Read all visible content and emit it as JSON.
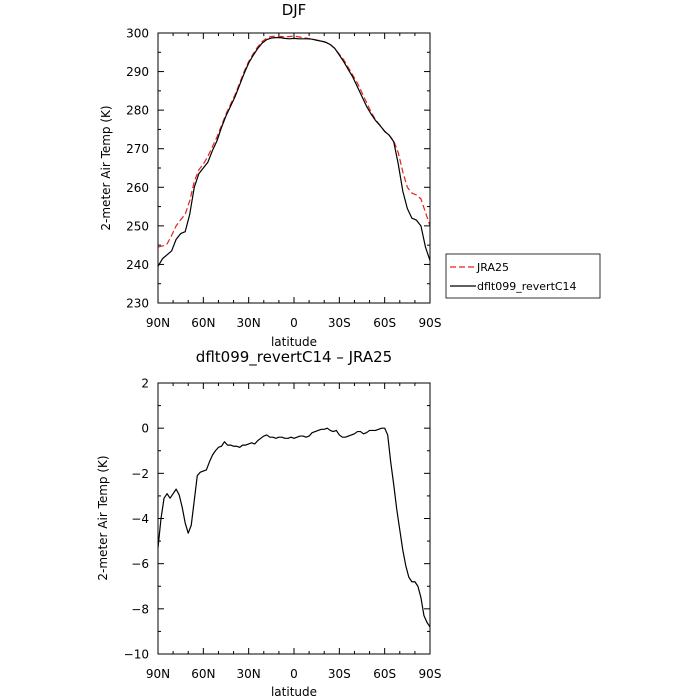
{
  "chart_data": [
    {
      "type": "line",
      "title": "DJF",
      "xlabel": "latitude",
      "ylabel": "2-meter Air Temp (K)",
      "xlim": [
        90,
        -90
      ],
      "ylim": [
        230,
        300
      ],
      "xticks": [
        90,
        60,
        30,
        0,
        -30,
        -60,
        -90
      ],
      "xtick_labels": [
        "90N",
        "60N",
        "30N",
        "0",
        "30S",
        "60S",
        "90S"
      ],
      "yticks": [
        230,
        240,
        250,
        260,
        270,
        280,
        290,
        300
      ],
      "ytick_labels": [
        "230",
        "240",
        "250",
        "260",
        "270",
        "280",
        "290",
        "300"
      ],
      "legend": "right",
      "series": [
        {
          "name": "JRA25",
          "color": "#e8201c",
          "dash": "dashed",
          "x": [
            90,
            87,
            84,
            81,
            78,
            75,
            72,
            69,
            66,
            63,
            60,
            57,
            54,
            51,
            48,
            45,
            42,
            39,
            36,
            33,
            30,
            27,
            24,
            21,
            18,
            15,
            12,
            9,
            6,
            3,
            0,
            -3,
            -6,
            -9,
            -12,
            -15,
            -18,
            -21,
            -24,
            -27,
            -30,
            -33,
            -36,
            -39,
            -42,
            -45,
            -48,
            -51,
            -54,
            -57,
            -60,
            -63,
            -66,
            -69,
            -72,
            -75,
            -78,
            -81,
            -84,
            -87,
            -90
          ],
          "y": [
            244.5,
            244.8,
            245.3,
            247.5,
            250,
            251.6,
            253,
            256.5,
            261.5,
            264.5,
            266,
            268,
            270.5,
            273,
            276,
            279,
            281.5,
            284,
            287,
            290,
            292.6,
            294.6,
            296.4,
            297.8,
            298.7,
            299.1,
            299.2,
            299.1,
            299.0,
            299.1,
            299.2,
            299.0,
            298.8,
            298.6,
            298.4,
            298.2,
            297.9,
            297.6,
            297.0,
            296.0,
            294.5,
            293,
            291,
            289,
            287,
            284.5,
            282,
            279.5,
            277.5,
            276,
            274.5,
            273.5,
            272,
            269,
            264,
            260,
            258.5,
            258,
            257,
            253.5,
            250
          ]
        },
        {
          "name": "dflt099_revertC14",
          "color": "#000000",
          "dash": "solid",
          "x": [
            90,
            87,
            84,
            81,
            78,
            75,
            72,
            69,
            66,
            63,
            60,
            57,
            54,
            51,
            48,
            45,
            42,
            39,
            36,
            33,
            30,
            27,
            24,
            21,
            18,
            15,
            12,
            9,
            6,
            3,
            0,
            -3,
            -6,
            -9,
            -12,
            -15,
            -18,
            -21,
            -24,
            -27,
            -30,
            -33,
            -36,
            -39,
            -42,
            -45,
            -48,
            -51,
            -54,
            -57,
            -60,
            -63,
            -66,
            -69,
            -72,
            -75,
            -78,
            -81,
            -84,
            -87,
            -90
          ],
          "y": [
            239.5,
            241.5,
            242.5,
            243.5,
            246.5,
            248,
            248.5,
            253,
            260,
            263.5,
            265,
            266.5,
            269.5,
            272,
            275.5,
            278.5,
            281,
            283.5,
            286.5,
            289.5,
            292.2,
            294.2,
            296.0,
            297.4,
            298.3,
            298.7,
            298.8,
            298.8,
            298.6,
            298.5,
            298.6,
            298.5,
            298.5,
            298.5,
            298.4,
            298.1,
            297.9,
            297.6,
            297.0,
            296.0,
            294.3,
            292.5,
            290.5,
            288.5,
            286,
            283.5,
            281,
            279,
            277.3,
            276,
            274.5,
            273.5,
            271.8,
            266,
            259,
            254.5,
            252,
            251.5,
            250,
            244.5,
            241
          ]
        }
      ]
    },
    {
      "type": "line",
      "title": "dflt099_revertC14 – JRA25",
      "xlabel": "latitude",
      "ylabel": "2-meter Air Temp (K)",
      "xlim": [
        90,
        -90
      ],
      "ylim": [
        -10,
        2
      ],
      "xticks": [
        90,
        60,
        30,
        0,
        -30,
        -60,
        -90
      ],
      "xtick_labels": [
        "90N",
        "60N",
        "30N",
        "0",
        "30S",
        "60S",
        "90S"
      ],
      "yticks": [
        -10,
        -8,
        -6,
        -4,
        -2,
        0,
        2
      ],
      "ytick_labels": [
        "−10",
        "−8",
        "−6",
        "−4",
        "−2",
        "0",
        "2"
      ],
      "series": [
        {
          "color": "#000000",
          "dash": "solid",
          "x": [
            90,
            88,
            86,
            84,
            82,
            80,
            78,
            76,
            74,
            72,
            70,
            68,
            66,
            64,
            62,
            60,
            58,
            56,
            54,
            52,
            50,
            48,
            46,
            44,
            42,
            40,
            38,
            36,
            34,
            32,
            30,
            28,
            26,
            24,
            22,
            20,
            18,
            16,
            14,
            12,
            10,
            8,
            6,
            4,
            2,
            0,
            -2,
            -4,
            -6,
            -8,
            -10,
            -12,
            -14,
            -16,
            -18,
            -20,
            -22,
            -24,
            -26,
            -28,
            -30,
            -32,
            -34,
            -36,
            -38,
            -40,
            -42,
            -44,
            -46,
            -48,
            -50,
            -52,
            -54,
            -56,
            -58,
            -60,
            -62,
            -64,
            -66,
            -68,
            -70,
            -72,
            -74,
            -76,
            -78,
            -80,
            -82,
            -84,
            -86,
            -88,
            -90
          ],
          "y": [
            -5.3,
            -4.0,
            -3.1,
            -2.9,
            -3.1,
            -2.9,
            -2.7,
            -2.95,
            -3.5,
            -4.2,
            -4.65,
            -4.3,
            -3.2,
            -2.1,
            -1.95,
            -1.9,
            -1.85,
            -1.5,
            -1.2,
            -1.0,
            -0.85,
            -0.8,
            -0.6,
            -0.75,
            -0.75,
            -0.8,
            -0.8,
            -0.85,
            -0.75,
            -0.75,
            -0.7,
            -0.65,
            -0.7,
            -0.55,
            -0.45,
            -0.35,
            -0.3,
            -0.4,
            -0.4,
            -0.45,
            -0.4,
            -0.4,
            -0.45,
            -0.45,
            -0.4,
            -0.45,
            -0.4,
            -0.35,
            -0.35,
            -0.4,
            -0.35,
            -0.2,
            -0.15,
            -0.1,
            -0.05,
            -0.05,
            0.0,
            -0.1,
            -0.15,
            -0.1,
            -0.3,
            -0.4,
            -0.4,
            -0.35,
            -0.3,
            -0.25,
            -0.15,
            -0.15,
            -0.25,
            -0.2,
            -0.1,
            -0.1,
            -0.1,
            -0.05,
            0.0,
            0.0,
            -0.3,
            -1.5,
            -2.5,
            -3.6,
            -4.5,
            -5.4,
            -6.1,
            -6.6,
            -6.8,
            -6.8,
            -7.0,
            -7.5,
            -8.3,
            -8.6,
            -8.8
          ]
        }
      ]
    }
  ]
}
